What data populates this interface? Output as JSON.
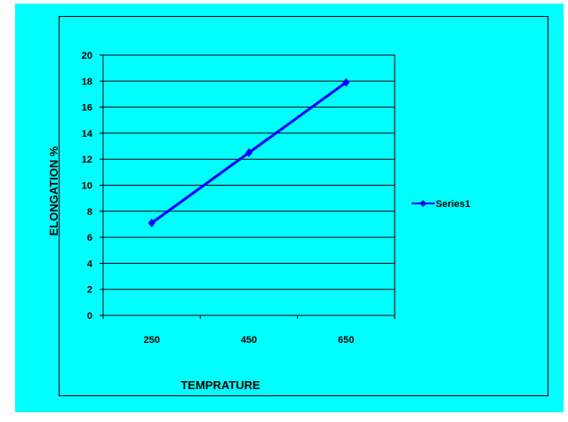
{
  "chart_data": {
    "type": "line",
    "categories": [
      "250",
      "450",
      "650"
    ],
    "series": [
      {
        "name": "Series1",
        "values": [
          7.1,
          12.5,
          17.9
        ]
      }
    ],
    "xlabel": "TEMPRATURE",
    "ylabel": "ELONGATION %",
    "ylim": [
      0,
      20
    ],
    "yticks": [
      "0",
      "2",
      "4",
      "6",
      "8",
      "10",
      "12",
      "14",
      "16",
      "18",
      "20"
    ],
    "grid": true,
    "legend": "right",
    "colors": {
      "background": "#00FFFF",
      "series": "#0000FF",
      "grid": "#000000"
    }
  }
}
